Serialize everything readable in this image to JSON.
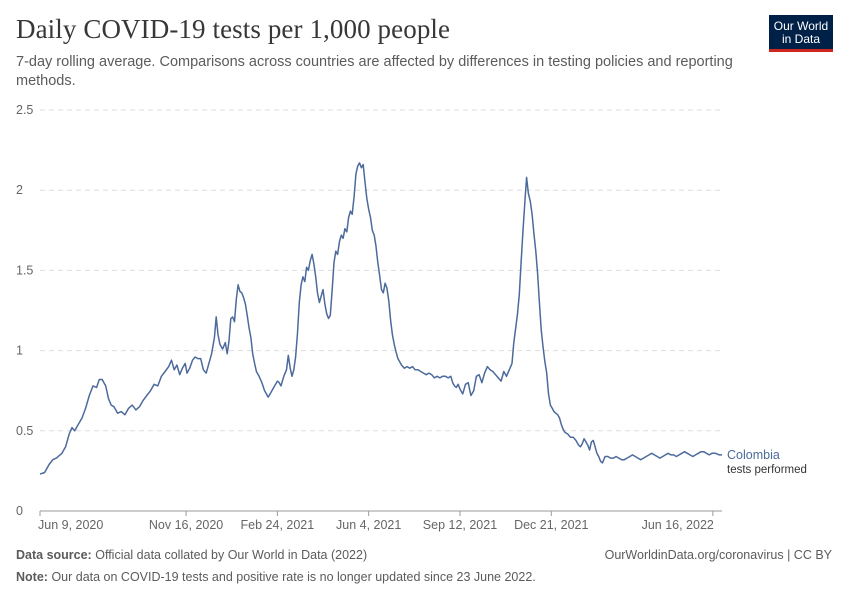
{
  "header": {
    "title": "Daily COVID-19 tests per 1,000 people",
    "subtitle": "7-day rolling average. Comparisons across countries are affected by differences in testing policies and reporting methods."
  },
  "logo": {
    "line1": "Our World",
    "line2": "in Data",
    "bg_color": "#002147",
    "accent_color": "#ce261e"
  },
  "footer": {
    "source_label": "Data source:",
    "source_text": "Official data collated by Our World in Data (2022)",
    "note_label": "Note:",
    "note_text": "Our data on COVID-19 tests and positive rate is no longer updated since 23 June 2022.",
    "credit": "OurWorldinData.org/coronavirus | CC BY"
  },
  "chart_data": {
    "type": "line",
    "title": "Daily COVID-19 tests per 1,000 people",
    "xlabel": "",
    "ylabel": "",
    "ylim": [
      0,
      2.5
    ],
    "yticks": [
      0,
      0.5,
      1,
      1.5,
      2,
      2.5
    ],
    "ytick_labels": [
      "0",
      "0.5",
      "1",
      "1.5",
      "2",
      "2.5"
    ],
    "xrange_days": [
      0,
      747
    ],
    "xticks": [
      {
        "day": 0,
        "label": "Jun 9, 2020"
      },
      {
        "day": 160,
        "label": "Nov 16, 2020"
      },
      {
        "day": 260,
        "label": "Feb 24, 2021"
      },
      {
        "day": 360,
        "label": "Jun 4, 2021"
      },
      {
        "day": 460,
        "label": "Sep 12, 2021"
      },
      {
        "day": 560,
        "label": "Dec 21, 2021"
      },
      {
        "day": 737,
        "label": "Jun 16, 2022"
      }
    ],
    "grid": true,
    "series": [
      {
        "name": "Colombia",
        "sublabel": "tests performed",
        "color": "#4c6a9c",
        "points": [
          [
            0,
            0.23
          ],
          [
            5,
            0.24
          ],
          [
            10,
            0.29
          ],
          [
            14,
            0.32
          ],
          [
            18,
            0.33
          ],
          [
            24,
            0.36
          ],
          [
            28,
            0.4
          ],
          [
            32,
            0.48
          ],
          [
            35,
            0.52
          ],
          [
            38,
            0.5
          ],
          [
            42,
            0.54
          ],
          [
            46,
            0.58
          ],
          [
            50,
            0.64
          ],
          [
            54,
            0.72
          ],
          [
            58,
            0.78
          ],
          [
            62,
            0.77
          ],
          [
            65,
            0.82
          ],
          [
            68,
            0.82
          ],
          [
            72,
            0.78
          ],
          [
            75,
            0.7
          ],
          [
            78,
            0.66
          ],
          [
            81,
            0.65
          ],
          [
            85,
            0.61
          ],
          [
            89,
            0.62
          ],
          [
            93,
            0.6
          ],
          [
            97,
            0.64
          ],
          [
            101,
            0.66
          ],
          [
            105,
            0.63
          ],
          [
            109,
            0.65
          ],
          [
            113,
            0.69
          ],
          [
            117,
            0.72
          ],
          [
            121,
            0.75
          ],
          [
            125,
            0.79
          ],
          [
            129,
            0.78
          ],
          [
            133,
            0.84
          ],
          [
            137,
            0.87
          ],
          [
            141,
            0.9
          ],
          [
            144,
            0.94
          ],
          [
            147,
            0.88
          ],
          [
            150,
            0.91
          ],
          [
            153,
            0.85
          ],
          [
            156,
            0.89
          ],
          [
            159,
            0.92
          ],
          [
            161,
            0.86
          ],
          [
            164,
            0.89
          ],
          [
            167,
            0.94
          ],
          [
            170,
            0.96
          ],
          [
            173,
            0.95
          ],
          [
            176,
            0.95
          ],
          [
            179,
            0.88
          ],
          [
            182,
            0.86
          ],
          [
            185,
            0.92
          ],
          [
            188,
            0.98
          ],
          [
            191,
            1.08
          ],
          [
            193,
            1.21
          ],
          [
            195,
            1.1
          ],
          [
            197,
            1.04
          ],
          [
            200,
            1.01
          ],
          [
            203,
            1.05
          ],
          [
            205,
            0.98
          ],
          [
            207,
            1.06
          ],
          [
            209,
            1.2
          ],
          [
            211,
            1.21
          ],
          [
            213,
            1.18
          ],
          [
            215,
            1.32
          ],
          [
            217,
            1.41
          ],
          [
            219,
            1.37
          ],
          [
            221,
            1.36
          ],
          [
            223,
            1.33
          ],
          [
            225,
            1.29
          ],
          [
            227,
            1.22
          ],
          [
            229,
            1.14
          ],
          [
            231,
            1.08
          ],
          [
            233,
            0.98
          ],
          [
            235,
            0.92
          ],
          [
            237,
            0.87
          ],
          [
            240,
            0.84
          ],
          [
            243,
            0.8
          ],
          [
            246,
            0.75
          ],
          [
            248,
            0.73
          ],
          [
            250,
            0.71
          ],
          [
            252,
            0.73
          ],
          [
            254,
            0.75
          ],
          [
            256,
            0.77
          ],
          [
            258,
            0.79
          ],
          [
            260,
            0.81
          ],
          [
            262,
            0.8
          ],
          [
            264,
            0.78
          ],
          [
            267,
            0.84
          ],
          [
            270,
            0.88
          ],
          [
            272,
            0.97
          ],
          [
            274,
            0.89
          ],
          [
            276,
            0.84
          ],
          [
            278,
            0.88
          ],
          [
            280,
            0.96
          ],
          [
            282,
            1.11
          ],
          [
            284,
            1.3
          ],
          [
            286,
            1.41
          ],
          [
            288,
            1.46
          ],
          [
            290,
            1.43
          ],
          [
            292,
            1.52
          ],
          [
            294,
            1.5
          ],
          [
            296,
            1.56
          ],
          [
            298,
            1.6
          ],
          [
            300,
            1.54
          ],
          [
            302,
            1.46
          ],
          [
            304,
            1.36
          ],
          [
            306,
            1.3
          ],
          [
            308,
            1.34
          ],
          [
            310,
            1.38
          ],
          [
            312,
            1.29
          ],
          [
            314,
            1.23
          ],
          [
            316,
            1.2
          ],
          [
            318,
            1.22
          ],
          [
            320,
            1.38
          ],
          [
            322,
            1.55
          ],
          [
            324,
            1.62
          ],
          [
            326,
            1.6
          ],
          [
            328,
            1.68
          ],
          [
            330,
            1.72
          ],
          [
            332,
            1.7
          ],
          [
            334,
            1.76
          ],
          [
            336,
            1.74
          ],
          [
            338,
            1.83
          ],
          [
            340,
            1.87
          ],
          [
            342,
            1.85
          ],
          [
            344,
            1.96
          ],
          [
            346,
            2.1
          ],
          [
            348,
            2.15
          ],
          [
            350,
            2.17
          ],
          [
            352,
            2.14
          ],
          [
            354,
            2.16
          ],
          [
            356,
            2.05
          ],
          [
            358,
            1.95
          ],
          [
            360,
            1.88
          ],
          [
            362,
            1.83
          ],
          [
            364,
            1.75
          ],
          [
            366,
            1.72
          ],
          [
            368,
            1.65
          ],
          [
            370,
            1.55
          ],
          [
            372,
            1.47
          ],
          [
            374,
            1.38
          ],
          [
            376,
            1.36
          ],
          [
            378,
            1.42
          ],
          [
            380,
            1.39
          ],
          [
            382,
            1.31
          ],
          [
            384,
            1.19
          ],
          [
            386,
            1.1
          ],
          [
            388,
            1.04
          ],
          [
            390,
            0.99
          ],
          [
            392,
            0.95
          ],
          [
            394,
            0.93
          ],
          [
            396,
            0.91
          ],
          [
            399,
            0.89
          ],
          [
            402,
            0.9
          ],
          [
            405,
            0.89
          ],
          [
            408,
            0.9
          ],
          [
            411,
            0.88
          ],
          [
            414,
            0.88
          ],
          [
            417,
            0.87
          ],
          [
            420,
            0.86
          ],
          [
            423,
            0.85
          ],
          [
            426,
            0.86
          ],
          [
            429,
            0.85
          ],
          [
            432,
            0.83
          ],
          [
            435,
            0.84
          ],
          [
            438,
            0.83
          ],
          [
            441,
            0.84
          ],
          [
            444,
            0.84
          ],
          [
            447,
            0.83
          ],
          [
            450,
            0.84
          ],
          [
            452,
            0.8
          ],
          [
            454,
            0.78
          ],
          [
            456,
            0.77
          ],
          [
            458,
            0.79
          ],
          [
            460,
            0.76
          ],
          [
            463,
            0.73
          ],
          [
            466,
            0.79
          ],
          [
            469,
            0.8
          ],
          [
            472,
            0.72
          ],
          [
            475,
            0.75
          ],
          [
            478,
            0.84
          ],
          [
            481,
            0.85
          ],
          [
            484,
            0.8
          ],
          [
            487,
            0.86
          ],
          [
            490,
            0.9
          ],
          [
            493,
            0.88
          ],
          [
            496,
            0.87
          ],
          [
            499,
            0.85
          ],
          [
            502,
            0.83
          ],
          [
            505,
            0.81
          ],
          [
            508,
            0.87
          ],
          [
            511,
            0.84
          ],
          [
            514,
            0.88
          ],
          [
            517,
            0.92
          ],
          [
            519,
            1.05
          ],
          [
            521,
            1.14
          ],
          [
            523,
            1.23
          ],
          [
            525,
            1.35
          ],
          [
            527,
            1.55
          ],
          [
            529,
            1.75
          ],
          [
            531,
            1.92
          ],
          [
            533,
            2.08
          ],
          [
            535,
            1.98
          ],
          [
            537,
            1.93
          ],
          [
            539,
            1.85
          ],
          [
            541,
            1.73
          ],
          [
            543,
            1.62
          ],
          [
            545,
            1.48
          ],
          [
            547,
            1.3
          ],
          [
            549,
            1.13
          ],
          [
            551,
            1.02
          ],
          [
            553,
            0.93
          ],
          [
            555,
            0.86
          ],
          [
            557,
            0.73
          ],
          [
            559,
            0.66
          ],
          [
            561,
            0.64
          ],
          [
            563,
            0.62
          ],
          [
            565,
            0.61
          ],
          [
            567,
            0.6
          ],
          [
            569,
            0.58
          ],
          [
            571,
            0.54
          ],
          [
            573,
            0.51
          ],
          [
            575,
            0.49
          ],
          [
            578,
            0.48
          ],
          [
            581,
            0.46
          ],
          [
            584,
            0.46
          ],
          [
            587,
            0.44
          ],
          [
            590,
            0.41
          ],
          [
            592,
            0.4
          ],
          [
            594,
            0.42
          ],
          [
            596,
            0.45
          ],
          [
            598,
            0.43
          ],
          [
            600,
            0.41
          ],
          [
            602,
            0.38
          ],
          [
            604,
            0.43
          ],
          [
            606,
            0.44
          ],
          [
            608,
            0.4
          ],
          [
            610,
            0.36
          ],
          [
            612,
            0.34
          ],
          [
            614,
            0.31
          ],
          [
            616,
            0.3
          ],
          [
            619,
            0.34
          ],
          [
            622,
            0.34
          ],
          [
            625,
            0.33
          ],
          [
            628,
            0.33
          ],
          [
            631,
            0.34
          ],
          [
            634,
            0.33
          ],
          [
            637,
            0.32
          ],
          [
            640,
            0.32
          ],
          [
            643,
            0.33
          ],
          [
            646,
            0.34
          ],
          [
            649,
            0.35
          ],
          [
            652,
            0.34
          ],
          [
            655,
            0.33
          ],
          [
            658,
            0.32
          ],
          [
            661,
            0.33
          ],
          [
            664,
            0.34
          ],
          [
            667,
            0.35
          ],
          [
            670,
            0.36
          ],
          [
            673,
            0.35
          ],
          [
            676,
            0.34
          ],
          [
            679,
            0.33
          ],
          [
            682,
            0.34
          ],
          [
            685,
            0.35
          ],
          [
            688,
            0.36
          ],
          [
            691,
            0.35
          ],
          [
            694,
            0.35
          ],
          [
            697,
            0.34
          ],
          [
            700,
            0.35
          ],
          [
            703,
            0.36
          ],
          [
            706,
            0.37
          ],
          [
            709,
            0.36
          ],
          [
            712,
            0.35
          ],
          [
            715,
            0.34
          ],
          [
            718,
            0.35
          ],
          [
            721,
            0.36
          ],
          [
            724,
            0.37
          ],
          [
            727,
            0.37
          ],
          [
            730,
            0.36
          ],
          [
            733,
            0.35
          ],
          [
            736,
            0.36
          ],
          [
            740,
            0.36
          ],
          [
            744,
            0.35
          ],
          [
            747,
            0.35
          ]
        ]
      }
    ]
  }
}
